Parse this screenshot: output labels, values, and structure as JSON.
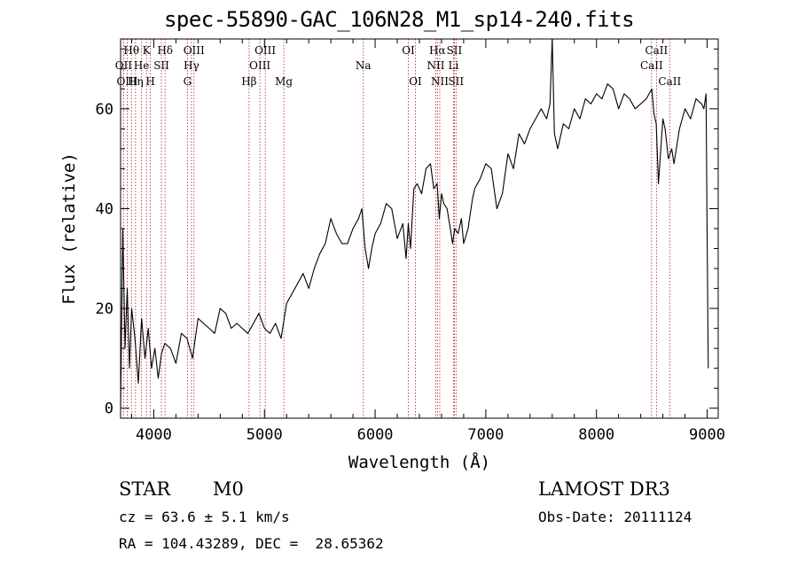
{
  "chart_data": {
    "type": "line",
    "title": "spec-55890-GAC_106N28_M1_sp14-240.fits",
    "xlabel": "Wavelength (Å)",
    "ylabel": "Flux (relative)",
    "xlim": [
      3700,
      9100
    ],
    "ylim": [
      -2,
      74
    ],
    "xticks": [
      4000,
      5000,
      6000,
      7000,
      8000,
      9000
    ],
    "xtick_labels": [
      "4000",
      "5000",
      "6000",
      "7000",
      "8000",
      "9000"
    ],
    "yticks": [
      0,
      20,
      40,
      60
    ],
    "ytick_labels": [
      "0",
      "20",
      "40",
      "60"
    ],
    "series": [
      {
        "name": "spectrum",
        "x": [
          3700,
          3720,
          3740,
          3760,
          3780,
          3800,
          3830,
          3860,
          3890,
          3920,
          3950,
          3980,
          4010,
          4040,
          4070,
          4100,
          4150,
          4200,
          4250,
          4300,
          4350,
          4400,
          4450,
          4500,
          4550,
          4600,
          4650,
          4700,
          4750,
          4800,
          4850,
          4900,
          4950,
          5000,
          5050,
          5100,
          5150,
          5200,
          5250,
          5300,
          5350,
          5400,
          5450,
          5500,
          5550,
          5600,
          5650,
          5700,
          5750,
          5800,
          5850,
          5880,
          5910,
          5940,
          5970,
          6000,
          6050,
          6100,
          6150,
          6200,
          6250,
          6280,
          6300,
          6320,
          6350,
          6380,
          6420,
          6460,
          6500,
          6530,
          6560,
          6580,
          6600,
          6620,
          6650,
          6680,
          6700,
          6720,
          6750,
          6780,
          6800,
          6840,
          6880,
          6900,
          6950,
          7000,
          7050,
          7100,
          7150,
          7200,
          7250,
          7300,
          7350,
          7400,
          7450,
          7500,
          7550,
          7580,
          7600,
          7620,
          7650,
          7700,
          7750,
          7800,
          7850,
          7900,
          7950,
          8000,
          8050,
          8100,
          8150,
          8200,
          8250,
          8300,
          8350,
          8400,
          8450,
          8500,
          8520,
          8540,
          8560,
          8600,
          8620,
          8650,
          8680,
          8700,
          8750,
          8800,
          8850,
          8900,
          8950,
          8970,
          8990,
          9000,
          9010
        ],
        "y": [
          0,
          36,
          12,
          24,
          8,
          20,
          14,
          5,
          18,
          10,
          16,
          8,
          12,
          6,
          11,
          13,
          12,
          9,
          15,
          14,
          10,
          18,
          17,
          16,
          15,
          20,
          19,
          16,
          17,
          16,
          15,
          17,
          19,
          16,
          15,
          17,
          14,
          21,
          23,
          25,
          27,
          24,
          28,
          31,
          33,
          38,
          35,
          33,
          33,
          36,
          38,
          40,
          32,
          28,
          32,
          35,
          37,
          41,
          40,
          34,
          37,
          30,
          37,
          32,
          44,
          45,
          43,
          48,
          49,
          44,
          45,
          38,
          43,
          41,
          40,
          36,
          33,
          36,
          35,
          38,
          33,
          36,
          42,
          44,
          46,
          49,
          48,
          40,
          43,
          51,
          48,
          55,
          53,
          56,
          58,
          60,
          58,
          61,
          74,
          55,
          52,
          57,
          56,
          60,
          58,
          62,
          61,
          63,
          62,
          65,
          64,
          60,
          63,
          62,
          60,
          61,
          62,
          64,
          59,
          57,
          45,
          58,
          56,
          50,
          52,
          49,
          56,
          60,
          58,
          62,
          61,
          60,
          63,
          35,
          8
        ]
      }
    ],
    "line_markers": [
      {
        "label": "Hθ",
        "x": 3798,
        "row": 0
      },
      {
        "label": "OII",
        "x": 3727,
        "row": 1
      },
      {
        "label": "OIII",
        "x": 3760,
        "row": 2
      },
      {
        "label": "Hη",
        "x": 3835,
        "row": 2
      },
      {
        "label": "K",
        "x": 3934,
        "row": 0
      },
      {
        "label": "He",
        "x": 3889,
        "row": 1
      },
      {
        "label": "SII",
        "x": 4069,
        "row": 1
      },
      {
        "label": "H",
        "x": 3969,
        "row": 2
      },
      {
        "label": "Hδ",
        "x": 4102,
        "row": 0
      },
      {
        "label": "OIII",
        "x": 4363,
        "row": 0
      },
      {
        "label": "Hγ",
        "x": 4340,
        "row": 1
      },
      {
        "label": "G",
        "x": 4304,
        "row": 2
      },
      {
        "label": "OIII",
        "x": 5007,
        "row": 0
      },
      {
        "label": "OIII",
        "x": 4959,
        "row": 1
      },
      {
        "label": "Hβ",
        "x": 4861,
        "row": 2
      },
      {
        "label": "Mg",
        "x": 5175,
        "row": 2
      },
      {
        "label": "Na",
        "x": 5893,
        "row": 1
      },
      {
        "label": "OI",
        "x": 6300,
        "row": 0
      },
      {
        "label": "OI",
        "x": 6364,
        "row": 2
      },
      {
        "label": "Hα",
        "x": 6563,
        "row": 0
      },
      {
        "label": "SII",
        "x": 6716,
        "row": 0
      },
      {
        "label": "NII",
        "x": 6548,
        "row": 1
      },
      {
        "label": "Li",
        "x": 6708,
        "row": 1
      },
      {
        "label": "NII",
        "x": 6584,
        "row": 2
      },
      {
        "label": "SII",
        "x": 6731,
        "row": 2
      },
      {
        "label": "CaII",
        "x": 8542,
        "row": 0
      },
      {
        "label": "CaII",
        "x": 8498,
        "row": 1
      },
      {
        "label": "CaII",
        "x": 8662,
        "row": 2
      }
    ]
  },
  "info": {
    "object_class": "STAR",
    "subclass": "M0",
    "survey": "LAMOST DR3",
    "redshift": "cz = 63.6 ± 5.1 km/s",
    "obs_date": "Obs-Date: 20111124",
    "coords": "RA = 104.43289, DEC =  28.65362"
  },
  "colors": {
    "marker_line": "#b22222",
    "axis": "#000000",
    "spectrum": "#000000"
  }
}
